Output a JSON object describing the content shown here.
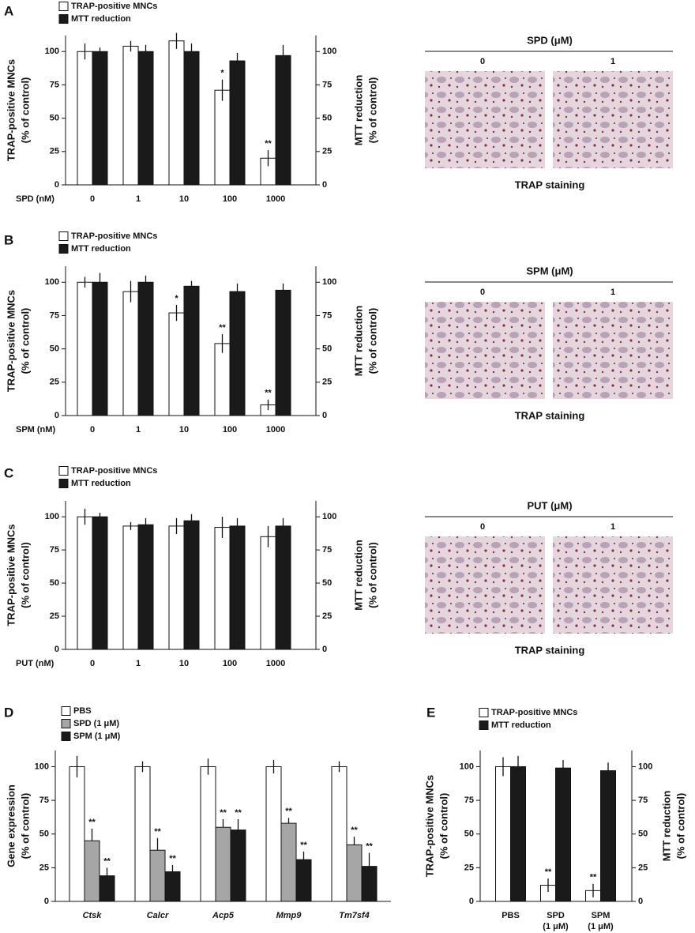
{
  "panels": [
    "A",
    "B",
    "C",
    "D",
    "E"
  ],
  "micrographs": [
    {
      "title": "SPD (μM)",
      "labels": [
        "0",
        "1"
      ],
      "caption": "TRAP staining"
    },
    {
      "title": "SPM (μM)",
      "labels": [
        "0",
        "1"
      ],
      "caption": "TRAP staining"
    },
    {
      "title": "PUT (μM)",
      "labels": [
        "0",
        "1"
      ],
      "caption": "TRAP staining"
    }
  ],
  "chart_data": [
    {
      "type": "bar",
      "xlabel": "SPD (nM)",
      "ylabel": [
        "TRAP-positive MNCs",
        "(% of control)"
      ],
      "y2label": [
        "MTT reduction",
        "(% of control)"
      ],
      "categories": [
        "0",
        "1",
        "10",
        "100",
        "1000"
      ],
      "ylim": [
        0,
        112
      ],
      "yticks": [
        0,
        25,
        50,
        75,
        100
      ],
      "y2lim": [
        0,
        112
      ],
      "y2ticks": [
        0,
        25,
        50,
        75,
        100
      ],
      "series": [
        {
          "name": "TRAP-positive MNCs",
          "color": "#ffffff",
          "values": [
            100,
            104,
            108,
            71,
            20
          ],
          "errors": [
            6,
            4,
            6,
            8,
            6
          ],
          "significance": [
            null,
            null,
            null,
            "*",
            "**"
          ]
        },
        {
          "name": "MTT reduction",
          "color": "#1a1a1a",
          "axis": "y2",
          "values": [
            100,
            100,
            100,
            93,
            97
          ],
          "errors": [
            3,
            5,
            6,
            6,
            8
          ]
        }
      ]
    },
    {
      "type": "bar",
      "xlabel": "SPM (nM)",
      "ylabel": [
        "TRAP-positive MNCs",
        "(% of control)"
      ],
      "y2label": [
        "MTT reduction",
        "(% of control)"
      ],
      "categories": [
        "0",
        "1",
        "10",
        "100",
        "1000"
      ],
      "ylim": [
        0,
        112
      ],
      "yticks": [
        0,
        25,
        50,
        75,
        100
      ],
      "y2lim": [
        0,
        112
      ],
      "y2ticks": [
        0,
        25,
        50,
        75,
        100
      ],
      "series": [
        {
          "name": "TRAP-positive MNCs",
          "color": "#ffffff",
          "values": [
            100,
            93,
            77,
            54,
            8
          ],
          "errors": [
            4,
            8,
            6,
            7,
            4
          ],
          "significance": [
            null,
            null,
            "*",
            "**",
            "**"
          ]
        },
        {
          "name": "MTT reduction",
          "color": "#1a1a1a",
          "axis": "y2",
          "values": [
            100,
            100,
            97,
            93,
            94
          ],
          "errors": [
            7,
            5,
            4,
            6,
            5
          ]
        }
      ]
    },
    {
      "type": "bar",
      "xlabel": "PUT (nM)",
      "ylabel": [
        "TRAP-positive MNCs",
        "(% of control)"
      ],
      "y2label": [
        "MTT reduction",
        "(% of control)"
      ],
      "categories": [
        "0",
        "1",
        "10",
        "100",
        "1000"
      ],
      "ylim": [
        0,
        112
      ],
      "yticks": [
        0,
        25,
        50,
        75,
        100
      ],
      "y2lim": [
        0,
        112
      ],
      "y2ticks": [
        0,
        25,
        50,
        75,
        100
      ],
      "series": [
        {
          "name": "TRAP-positive MNCs",
          "color": "#ffffff",
          "values": [
            100,
            93,
            93,
            92,
            85
          ],
          "errors": [
            6,
            3,
            6,
            8,
            8
          ]
        },
        {
          "name": "MTT reduction",
          "color": "#1a1a1a",
          "axis": "y2",
          "values": [
            100,
            94,
            97,
            93,
            93
          ],
          "errors": [
            3,
            5,
            5,
            6,
            6
          ]
        }
      ]
    },
    {
      "type": "bar",
      "ylabel": [
        "Gene expression",
        "(% of control)"
      ],
      "italic_categories": true,
      "categories": [
        "Ctsk",
        "Calcr",
        "Acp5",
        "Mmp9",
        "Tm7sf4"
      ],
      "ylim": [
        0,
        112
      ],
      "yticks": [
        0,
        25,
        50,
        75,
        100
      ],
      "series": [
        {
          "name": "PBS",
          "color": "#ffffff",
          "values": [
            100,
            100,
            100,
            100,
            100
          ],
          "errors": [
            8,
            4,
            6,
            5,
            4
          ]
        },
        {
          "name": "SPD (1 μM)",
          "color": "#a6a6a6",
          "values": [
            45,
            38,
            55,
            58,
            42
          ],
          "errors": [
            9,
            9,
            6,
            4,
            6
          ],
          "significance": [
            "**",
            "**",
            "**",
            "**",
            "**"
          ]
        },
        {
          "name": "SPM (1 μM)",
          "color": "#1a1a1a",
          "values": [
            19,
            22,
            53,
            31,
            26
          ],
          "errors": [
            6,
            5,
            8,
            6,
            10
          ],
          "significance": [
            "**",
            "**",
            "**",
            "**",
            "**"
          ]
        }
      ]
    },
    {
      "type": "bar",
      "ylabel": [
        "TRAP-positive MNCs",
        "(% of control)"
      ],
      "y2label": [
        "MTT reduction",
        "(% of control)"
      ],
      "categories": [
        "PBS",
        "SPD",
        "SPM"
      ],
      "category_sublabels": [
        null,
        "(1 μM)",
        "(1 μM)"
      ],
      "ylim": [
        0,
        112
      ],
      "yticks": [
        0,
        25,
        50,
        75,
        100
      ],
      "y2lim": [
        0,
        112
      ],
      "y2ticks": [
        0,
        25,
        50,
        75,
        100
      ],
      "series": [
        {
          "name": "TRAP-positive MNCs",
          "color": "#ffffff",
          "values": [
            100,
            12,
            8
          ],
          "errors": [
            7,
            5,
            5
          ],
          "significance": [
            null,
            "**",
            "**"
          ]
        },
        {
          "name": "MTT reduction",
          "color": "#1a1a1a",
          "axis": "y2",
          "values": [
            100,
            99,
            97
          ],
          "errors": [
            8,
            6,
            6
          ]
        }
      ]
    }
  ]
}
